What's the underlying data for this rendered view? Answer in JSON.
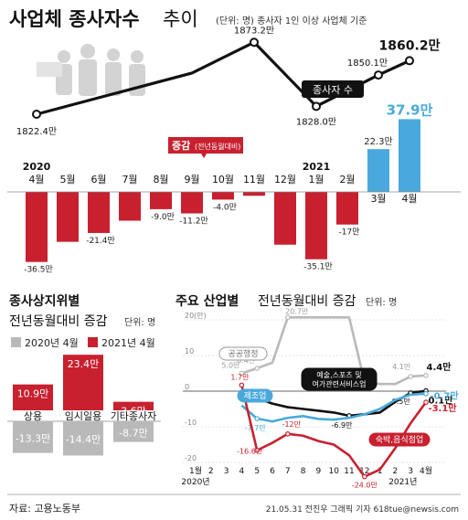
{
  "header": {
    "title_bold": "사업체 종사자수",
    "title_light": "추이",
    "unit_note": "(단위: 명) 종사자 1인 이상 사업체 기준"
  },
  "legend": {
    "change_label": "증감",
    "change_sub": "(전년동월대비)",
    "workers_label": "종사자 수"
  },
  "colors": {
    "red": "#c8202f",
    "blue": "#4aa9dc",
    "gray": "#b9b9b9",
    "line": "#111111"
  },
  "chart_data": [
    {
      "type": "line+bar",
      "title": "사업체 종사자수 추이",
      "year_labels": [
        "2020",
        "2021"
      ],
      "categories": [
        "4월",
        "5월",
        "6월",
        "7월",
        "8월",
        "9월",
        "10월",
        "11월",
        "12월",
        "1월",
        "2월",
        "3월",
        "4월"
      ],
      "line_series": {
        "name": "종사자 수",
        "points": [
          {
            "index": 0,
            "value": 1822.4,
            "label": "1822.4만"
          },
          {
            "index": 5,
            "value": 1851.5,
            "label": ""
          },
          {
            "index": 7,
            "value": 1873.2,
            "label": "1873.2만"
          },
          {
            "index": 9,
            "value": 1828.0,
            "label": "1828.0만"
          },
          {
            "index": 11,
            "value": 1850.1,
            "label": "1850.1만"
          },
          {
            "index": 12,
            "value": 1860.2,
            "label": "1860.2만"
          }
        ]
      },
      "bar_series": {
        "name": "증감(전년동월대비)",
        "values": [
          -36.5,
          -26.0,
          -21.4,
          -15.0,
          -9.0,
          -11.2,
          -4.0,
          -2.0,
          -27.5,
          -35.1,
          -17.0,
          22.3,
          37.9
        ],
        "labels": [
          "-36.5만",
          "",
          "-21.4만",
          "",
          "-9.0만",
          "-11.2만",
          "-4.0만",
          "",
          "",
          "-35.1만",
          "-17만",
          "22.3만",
          "37.9만"
        ]
      }
    },
    {
      "type": "bar",
      "title": "종사상지위별",
      "subtitle": "전년동월대비 증감",
      "unit": "단위: 명",
      "categories": [
        "상용",
        "임시일용",
        "기타종사자"
      ],
      "series": [
        {
          "name": "2020년 4월",
          "values": [
            -13.3,
            -14.4,
            -8.7
          ],
          "labels": [
            "-13.3만",
            "-14.4만",
            "-8.7만"
          ]
        },
        {
          "name": "2021년 4월",
          "values": [
            10.9,
            23.4,
            3.6
          ],
          "labels": [
            "10.9만",
            "23.4만",
            "3.6만"
          ]
        }
      ]
    },
    {
      "type": "line",
      "title": "주요 산업별",
      "subtitle": "전년동월대비 증감",
      "unit": "단위: 명",
      "x": [
        "4월",
        "5월",
        "6월",
        "7월",
        "8월",
        "9월",
        "10월",
        "11월",
        "12월",
        "1월",
        "2월",
        "3월",
        "4월"
      ],
      "x_ticks": [
        "1월",
        "2",
        "3",
        "4",
        "5",
        "6",
        "7",
        "8",
        "9",
        "10",
        "11",
        "12",
        "1",
        "2",
        "3",
        "4월"
      ],
      "x_year_labels": [
        "2020년",
        "2021년"
      ],
      "y_ticks": [
        "20(만)",
        "10",
        "0",
        "-10",
        "-20"
      ],
      "ylim": [
        -25,
        21
      ],
      "series": [
        {
          "name": "공공행정",
          "color": "#b9b9b9",
          "values": [
            5.0,
            6.4,
            8.0,
            20.7,
            20.7,
            20.7,
            20.7,
            20.7,
            2.6,
            2.0,
            2.0,
            4.1,
            4.4
          ],
          "labels": [
            "5.0만",
            "6.4만",
            "",
            "20.7만",
            "",
            "",
            "",
            "",
            "2.6만",
            "",
            "",
            "4.1만",
            "4.4만"
          ]
        },
        {
          "name": "예술,스포츠 및 여가관련서비스업",
          "color": "#111111",
          "values": [
            0.5,
            -2.0,
            -3.5,
            -4.5,
            -5.0,
            -5.5,
            -6.0,
            -6.9,
            -6.5,
            -6.0,
            -3.0,
            -0.5,
            0.1
          ],
          "labels": [
            "",
            "",
            "",
            "",
            "",
            "",
            "",
            "-6.9만",
            "",
            "",
            "",
            "-0.5만",
            "0.1만"
          ]
        },
        {
          "name": "제조업",
          "color": "#4aa9dc",
          "values": [
            -4.0,
            -7.7,
            -8.5,
            -7.5,
            -7.0,
            -7.8,
            -8.0,
            -7.5,
            -6.5,
            -5.0,
            -2.5,
            -1.0,
            -0.7
          ],
          "labels": [
            "",
            "-7.7만",
            "",
            "",
            "",
            "",
            "",
            "",
            "",
            "",
            "",
            "",
            "-0.7만"
          ]
        },
        {
          "name": "숙박,음식점업",
          "color": "#c8202f",
          "values": [
            1.7,
            -16.6,
            -14.5,
            -12.0,
            -12.5,
            -14.0,
            -15.0,
            -18.0,
            -24.0,
            -22.0,
            -16.0,
            -9.0,
            -3.1
          ],
          "labels": [
            "1.7만",
            "-16.6만",
            "",
            "-12만",
            "",
            "",
            "",
            "",
            "-24.0만",
            "",
            "",
            "",
            "-3.1만"
          ]
        }
      ]
    }
  ],
  "footer": {
    "source": "자료: 고용노동부",
    "credit": "21.05.31  전진우 그래픽 기자  618tue@newsis.com"
  }
}
